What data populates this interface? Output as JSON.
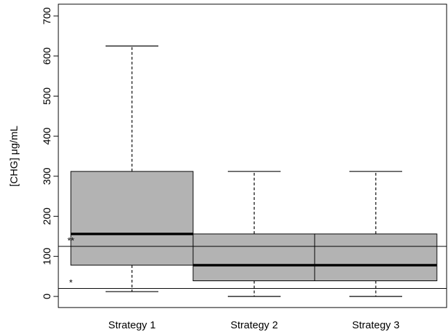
{
  "chart_data": {
    "type": "box",
    "ylabel": "[CHG] μg/mL",
    "xlabel": "",
    "ylim": [
      -25,
      715
    ],
    "yticks": [
      0,
      100,
      200,
      300,
      400,
      500,
      600,
      700
    ],
    "ytick_labels": [
      "0",
      "100",
      "200",
      "300",
      "400",
      "500",
      "600",
      "700"
    ],
    "categories": [
      "Strategy 1",
      "Strategy 2",
      "Strategy 3"
    ],
    "boxes": [
      {
        "whisker_low": 12,
        "q1": 78,
        "median": 156,
        "q3": 312,
        "whisker_high": 625
      },
      {
        "whisker_low": 0,
        "q1": 39,
        "median": 78,
        "q3": 156,
        "whisker_high": 312
      },
      {
        "whisker_low": 0,
        "q1": 39,
        "median": 78,
        "q3": 156,
        "whisker_high": 312
      }
    ],
    "reference_lines": [
      {
        "label": "**",
        "value": 125
      },
      {
        "label": "*",
        "value": 20
      }
    ],
    "colors": {
      "box_fill": "#b3b3b3",
      "stroke": "#000000"
    }
  }
}
